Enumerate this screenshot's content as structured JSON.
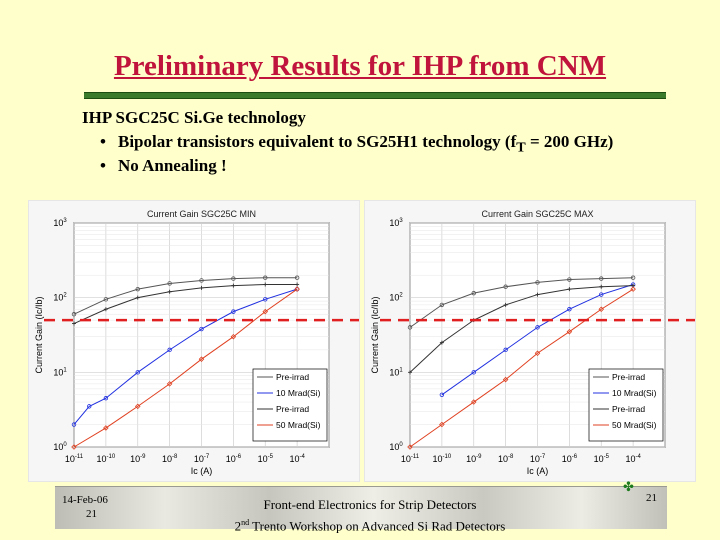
{
  "slide": {
    "title": "Preliminary Results for IHP from CNM",
    "intro": "IHP SGC25C Si.Ge technology",
    "bullets": [
      {
        "dot": "•",
        "pre": "Bipolar transistors equivalent to SG25H1 technology (f",
        "sub": "T",
        "post": " = 200 GHz)"
      },
      {
        "dot": "•",
        "pre": "No Annealing !",
        "sub": "",
        "post": ""
      }
    ]
  },
  "footer": {
    "date": "14-Feb-06",
    "slide_no": "21",
    "line1": "Front-end Electronics for Strip Detectors",
    "line2_pre": "2",
    "line2_sup": "nd",
    "line2_post": " Trento Workshop on Advanced Si Rad Detectors",
    "page": "21"
  },
  "colors": {
    "title": "#c0143c",
    "rule": "#3a7a2a",
    "threshold": "#e02020",
    "pre_irrad_1": "#555555",
    "pre_irrad_2": "#333333",
    "mrad10": "#2030e0",
    "mrad50": "#e04020"
  },
  "chart_data": [
    {
      "type": "scatter",
      "title": "Current Gain SGC25C MIN",
      "xlabel": "Ic (A)",
      "ylabel": "Current Gain (Ic/Ib)",
      "xscale": "log",
      "yscale": "log",
      "xlim": [
        1e-11,
        0.001
      ],
      "ylim": [
        1,
        1000
      ],
      "xtick_labels": [
        "10-11",
        "10-10",
        "10-9",
        "10-8",
        "10-7",
        "10-6",
        "10-5",
        "10-4"
      ],
      "ytick_labels": [
        "100",
        "101",
        "102",
        "103"
      ],
      "grid": true,
      "legend_position": "bottom-right",
      "threshold_line": 50,
      "series": [
        {
          "name": "Pre-irrad",
          "x": [
            1e-11,
            1e-10,
            1e-09,
            1e-08,
            1e-07,
            1e-06,
            1e-05,
            0.0001
          ],
          "y": [
            60,
            95,
            130,
            155,
            170,
            180,
            185,
            185
          ]
        },
        {
          "name": "10 Mrad(Si)",
          "x": [
            1e-11,
            3e-11,
            1e-10,
            1e-09,
            1e-08,
            1e-07,
            1e-06,
            1e-05,
            0.0001
          ],
          "y": [
            2,
            3.5,
            4.5,
            10,
            20,
            38,
            65,
            95,
            130
          ]
        },
        {
          "name": "Pre-irrad",
          "x": [
            1e-11,
            1e-10,
            1e-09,
            1e-08,
            1e-07,
            1e-06,
            1e-05,
            0.0001
          ],
          "y": [
            45,
            70,
            100,
            120,
            135,
            145,
            150,
            150
          ]
        },
        {
          "name": "50 Mrad(Si)",
          "x": [
            1e-11,
            1e-10,
            1e-09,
            1e-08,
            1e-07,
            1e-06,
            1e-05,
            0.0001
          ],
          "y": [
            1,
            1.8,
            3.5,
            7,
            15,
            30,
            65,
            130
          ]
        }
      ]
    },
    {
      "type": "scatter",
      "title": "Current Gain SGC25C MAX",
      "xlabel": "Ic (A)",
      "ylabel": "Current Gain (Ic/Ib)",
      "xscale": "log",
      "yscale": "log",
      "xlim": [
        1e-11,
        0.001
      ],
      "ylim": [
        1,
        1000
      ],
      "xtick_labels": [
        "10-11",
        "10-10",
        "10-9",
        "10-8",
        "10-7",
        "10-6",
        "10-5",
        "10-4"
      ],
      "ytick_labels": [
        "100",
        "101",
        "102",
        "103"
      ],
      "grid": true,
      "legend_position": "bottom-right",
      "threshold_line": 50,
      "series": [
        {
          "name": "Pre-irrad",
          "x": [
            1e-11,
            1e-10,
            1e-09,
            1e-08,
            1e-07,
            1e-06,
            1e-05,
            0.0001
          ],
          "y": [
            40,
            80,
            115,
            140,
            160,
            175,
            180,
            185
          ]
        },
        {
          "name": "10 Mrad(Si)",
          "x": [
            1e-10,
            1e-09,
            1e-08,
            1e-07,
            1e-06,
            1e-05,
            0.0001
          ],
          "y": [
            5,
            10,
            20,
            40,
            70,
            110,
            150
          ]
        },
        {
          "name": "Pre-irrad",
          "x": [
            1e-11,
            1e-10,
            1e-09,
            1e-08,
            1e-07,
            1e-06,
            1e-05,
            0.0001
          ],
          "y": [
            10,
            25,
            50,
            80,
            110,
            130,
            140,
            145
          ]
        },
        {
          "name": "50 Mrad(Si)",
          "x": [
            1e-11,
            1e-10,
            1e-09,
            1e-08,
            1e-07,
            1e-06,
            1e-05,
            0.0001
          ],
          "y": [
            1,
            2,
            4,
            8,
            18,
            35,
            70,
            130
          ]
        }
      ]
    }
  ]
}
